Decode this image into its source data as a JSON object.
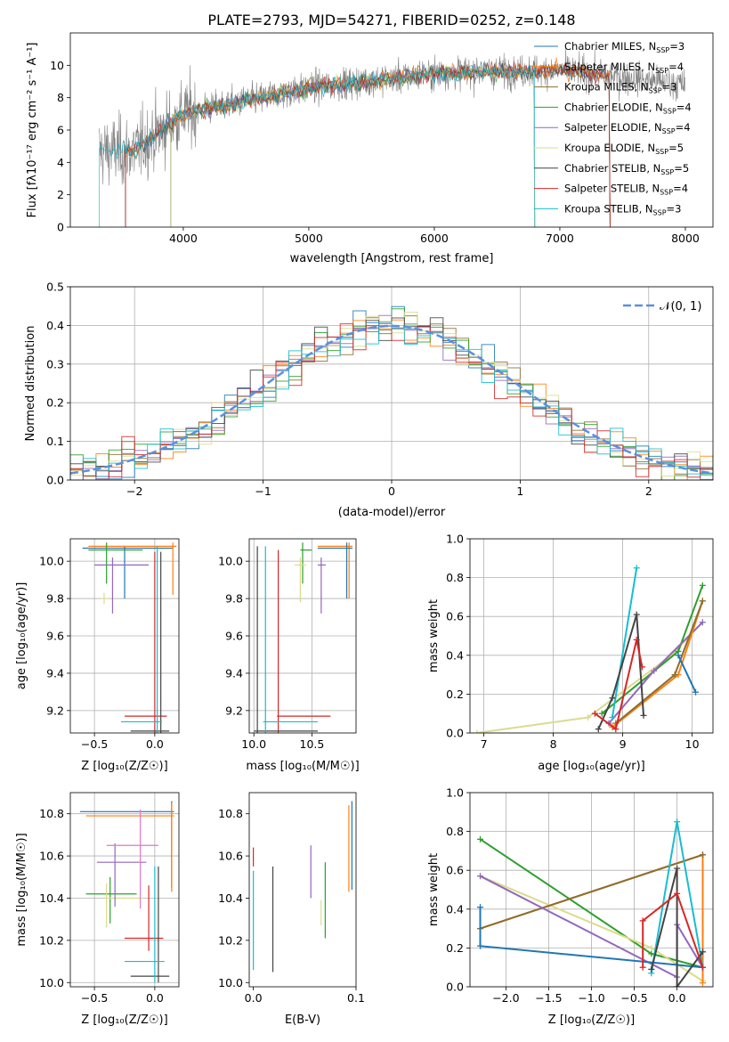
{
  "title": "PLATE=2793, MJD=54271, FIBERID=0252, z=0.148",
  "colors": {
    "Chabrier MILES": "#1f77b4",
    "Salpeter MILES": "#ff7f0e",
    "Kroupa MILES": "#8c6d31",
    "Chabrier ELODIE": "#2ca02c",
    "Salpeter ELODIE": "#9467bd",
    "Kroupa ELODIE": "#dbdb8d",
    "Chabrier STELIB": "#444444",
    "Salpeter STELIB": "#d62728",
    "Kroupa STELIB": "#17becf"
  },
  "chart_data": [
    {
      "type": "line",
      "id": "spectrum",
      "xlabel": "wavelength [Angstrom, rest frame]",
      "ylabel": "Flux [f_λ 10^-17 erg cm^-2 s^-1 A^-1]",
      "xlim": [
        3100,
        8220
      ],
      "ylim": [
        0,
        12
      ],
      "xticks": [
        4000,
        5000,
        6000,
        7000,
        8000
      ],
      "yticks": [
        0,
        2,
        4,
        6,
        8,
        10
      ],
      "data_range": [
        3330,
        8000
      ],
      "legend": [
        "Chabrier MILES, N_SSP=3",
        "Salpeter MILES, N_SSP=4",
        "Kroupa MILES, N_SSP=3",
        "Chabrier ELODIE, N_SSP=4",
        "Salpeter ELODIE, N_SSP=4",
        "Kroupa ELODIE, N_SSP=5",
        "Chabrier STELIB, N_SSP=5",
        "Salpeter STELIB, N_SSP=4",
        "Kroupa STELIB, N_SSP=3"
      ],
      "legend_colors": [
        "#1f77b4",
        "#ff7f0e",
        "#8c6d31",
        "#2ca02c",
        "#9467bd",
        "#dbdb8d",
        "#444444",
        "#d62728",
        "#17becf"
      ],
      "legend_placement": "upper right",
      "model_ranges": [
        [
          3540,
          7400
        ],
        [
          3540,
          7400
        ],
        [
          3540,
          7400
        ],
        [
          3900,
          6800
        ],
        [
          3900,
          6800
        ],
        [
          3900,
          6800
        ],
        [
          3540,
          7400
        ],
        [
          3540,
          7400
        ],
        [
          3330,
          6800
        ]
      ]
    },
    {
      "type": "bar",
      "id": "residuals",
      "xlabel": "(data-model)/error",
      "ylabel": "Normed distribution",
      "xlim": [
        -2.5,
        2.5
      ],
      "ylim": [
        0,
        0.5
      ],
      "xticks": [
        -2,
        -1,
        0,
        1,
        2
      ],
      "yticks": [
        0.0,
        0.1,
        0.2,
        0.3,
        0.4,
        0.5
      ],
      "legend": [
        "N(0,1)"
      ],
      "legend_placement": "upper right",
      "grid": true
    },
    {
      "type": "scatter",
      "id": "Z-age",
      "xlabel": "Z [log10(Z/Z☉)]",
      "ylabel": "age [log10(age/yr)]",
      "xlim": [
        -0.7,
        0.2
      ],
      "ylim": [
        9.08,
        10.12
      ],
      "xticks": [
        -0.5,
        0.0
      ],
      "yticks": [
        9.2,
        9.4,
        9.6,
        9.8,
        10.0
      ],
      "crosses": [
        {
          "s": "Chabrier MILES",
          "x": -0.25,
          "y": 10.07,
          "xl": -0.6,
          "xh": 0.15,
          "yl": 9.8,
          "yh": 10.08
        },
        {
          "s": "Salpeter MILES",
          "x": 0.15,
          "y": 10.08,
          "xl": -0.55,
          "xh": 0.18,
          "yl": 9.82,
          "yh": 10.1
        },
        {
          "s": "Chabrier ELODIE",
          "x": -0.4,
          "y": 10.06,
          "xl": -0.55,
          "xh": -0.1,
          "yl": 9.88,
          "yh": 10.1
        },
        {
          "s": "Salpeter ELODIE",
          "x": -0.35,
          "y": 9.98,
          "xl": -0.5,
          "xh": -0.05,
          "yl": 9.72,
          "yh": 10.02
        },
        {
          "s": "Kroupa ELODIE",
          "x": -0.42,
          "y": 9.8,
          "xl": -0.45,
          "xh": -0.38,
          "yl": 9.77,
          "yh": 9.83
        },
        {
          "s": "Salpeter STELIB",
          "x": 0.0,
          "y": 9.17,
          "xl": -0.25,
          "xh": 0.1,
          "yl": 9.08,
          "yh": 10.05
        },
        {
          "s": "Chabrier STELIB",
          "x": 0.05,
          "y": 9.09,
          "xl": -0.2,
          "xh": 0.12,
          "yl": 9.08,
          "yh": 10.05
        },
        {
          "s": "Kroupa STELIB",
          "x": 0.02,
          "y": 9.14,
          "xl": -0.28,
          "xh": 0.06,
          "yl": 9.08,
          "yh": 10.08
        }
      ],
      "grid": true
    },
    {
      "type": "scatter",
      "id": "mass-age",
      "xlabel": "mass [log10(M/M☉)]",
      "ylabel": "",
      "xlim": [
        9.96,
        10.88
      ],
      "ylim": [
        9.08,
        10.12
      ],
      "xticks": [
        10.0,
        10.5
      ],
      "yticks": [
        9.2,
        9.4,
        9.6,
        9.8,
        10.0
      ],
      "crosses": [
        {
          "s": "Salpeter MILES",
          "x": 10.82,
          "y": 10.08,
          "xl": 10.55,
          "xh": 10.85,
          "yl": 9.8,
          "yh": 10.1
        },
        {
          "s": "Chabrier MILES",
          "x": 10.8,
          "y": 10.07,
          "xl": 10.55,
          "xh": 10.85,
          "yl": 9.8,
          "yh": 10.1
        },
        {
          "s": "Chabrier ELODIE",
          "x": 10.42,
          "y": 10.06,
          "xl": 10.4,
          "xh": 10.5,
          "yl": 9.88,
          "yh": 10.1
        },
        {
          "s": "Kroupa ELODIE",
          "x": 10.4,
          "y": 9.98,
          "xl": 10.35,
          "xh": 10.45,
          "yl": 9.78,
          "yh": 10.02
        },
        {
          "s": "Salpeter ELODIE",
          "x": 10.58,
          "y": 9.98,
          "xl": 10.55,
          "xh": 10.62,
          "yl": 9.72,
          "yh": 10.02
        },
        {
          "s": "Salpeter STELIB",
          "x": 10.21,
          "y": 9.17,
          "xl": 10.2,
          "xh": 10.66,
          "yl": 9.08,
          "yh": 10.06
        },
        {
          "s": "Chabrier STELIB",
          "x": 10.03,
          "y": 9.09,
          "xl": 10.0,
          "xh": 10.55,
          "yl": 9.08,
          "yh": 10.08
        },
        {
          "s": "Kroupa STELIB",
          "x": 10.1,
          "y": 9.14,
          "xl": 10.08,
          "xh": 10.55,
          "yl": 9.08,
          "yh": 10.08
        }
      ],
      "grid": true
    },
    {
      "type": "line",
      "id": "age-weight",
      "xlabel": "age [log10(age/yr)]",
      "ylabel": "mass weight",
      "xlim": [
        6.8,
        10.3
      ],
      "ylim": [
        0.0,
        1.0
      ],
      "xticks": [
        7,
        8,
        9,
        10
      ],
      "yticks": [
        0.0,
        0.2,
        0.4,
        0.6,
        0.8,
        1.0
      ],
      "grid": true
    },
    {
      "type": "scatter",
      "id": "Z-mass",
      "xlabel": "Z [log10(Z/Z☉)]",
      "ylabel": "mass [log10(M/M☉)]",
      "xlim": [
        -0.7,
        0.2
      ],
      "ylim": [
        9.98,
        10.9
      ],
      "xticks": [
        -0.5,
        0.0
      ],
      "yticks": [
        10.0,
        10.2,
        10.4,
        10.6,
        10.8
      ],
      "grid": true
    },
    {
      "type": "scatter",
      "id": "EBV-mass",
      "xlabel": "E(B-V)",
      "ylabel": "",
      "xlim": [
        -0.004,
        0.1
      ],
      "ylim": [
        9.98,
        10.9
      ],
      "xticks": [
        0.0,
        0.1
      ],
      "yticks": [
        10.0,
        10.2,
        10.4,
        10.6,
        10.8
      ],
      "grid": false
    },
    {
      "type": "line",
      "id": "Z-weight",
      "xlabel": "Z [log10(Z/Z☉)]",
      "ylabel": "mass weight",
      "xlim": [
        -2.42,
        0.42
      ],
      "ylim": [
        0.0,
        1.0
      ],
      "xticks": [
        -2.0,
        -1.5,
        -1.0,
        -0.5,
        0.0
      ],
      "yticks": [
        0.0,
        0.2,
        0.4,
        0.6,
        0.8,
        1.0
      ],
      "grid": true
    }
  ]
}
